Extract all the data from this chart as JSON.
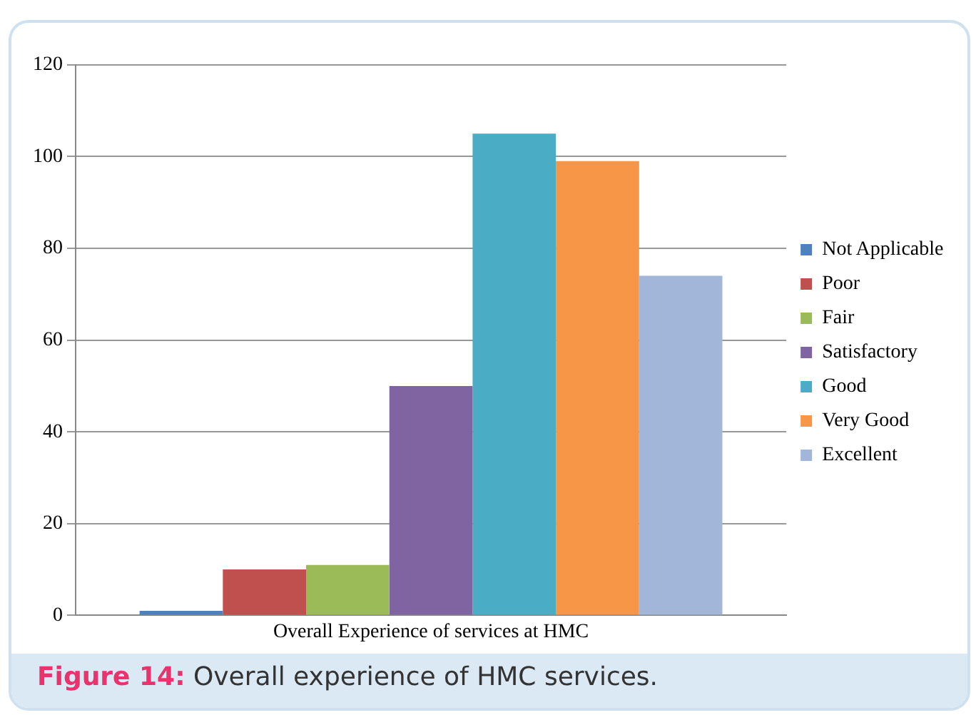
{
  "chart_data": {
    "type": "bar",
    "categories": [
      "Overall Experience of services at HMC"
    ],
    "series": [
      {
        "name": "Not Applicable",
        "color": "#4f81bd",
        "values": [
          1
        ]
      },
      {
        "name": "Poor",
        "color": "#c0504d",
        "values": [
          10
        ]
      },
      {
        "name": "Fair",
        "color": "#9bbb59",
        "values": [
          11
        ]
      },
      {
        "name": "Satisfactory",
        "color": "#8064a2",
        "values": [
          50
        ]
      },
      {
        "name": "Good",
        "color": "#4bacc6",
        "values": [
          105
        ]
      },
      {
        "name": "Very Good",
        "color": "#f79646",
        "values": [
          99
        ]
      },
      {
        "name": "Excellent",
        "color": "#a2b6d9",
        "values": [
          74
        ]
      }
    ],
    "ylim": [
      0,
      120
    ],
    "yticks": [
      0,
      20,
      40,
      60,
      80,
      100,
      120
    ],
    "grid": "y",
    "legend": "right",
    "annotations": [
      "Figure 14: Overall experience of HMC services."
    ]
  }
}
